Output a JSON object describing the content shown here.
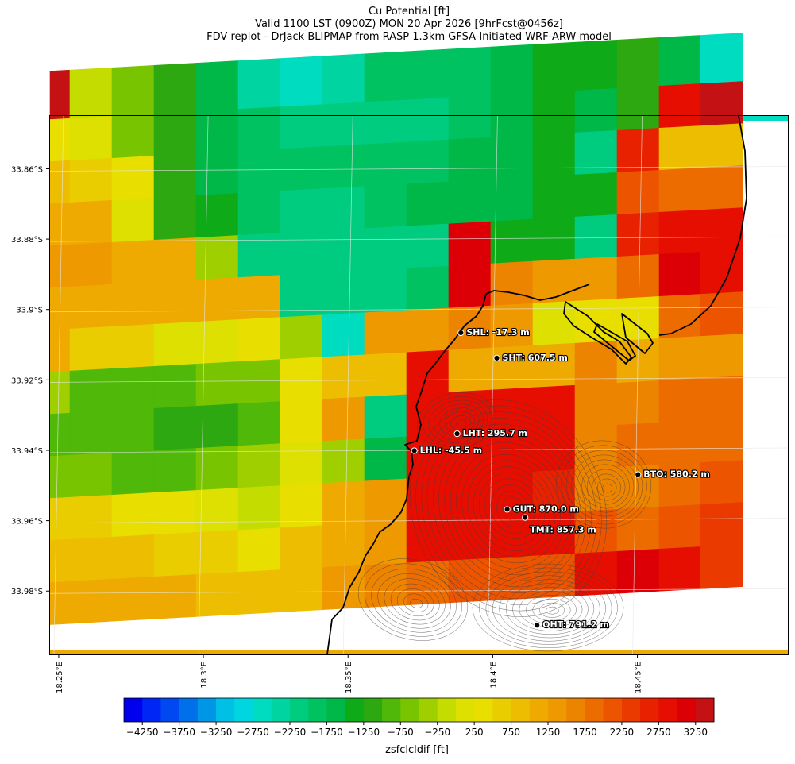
{
  "title": {
    "line1": "Cu Potential [ft]",
    "line2": "Valid 1100 LST (0900Z) MON 20 Apr 2026 [9hrFcst@0456z]",
    "line3": "FDV replot - DrJack BLIPMAP from RASP 1.3km GFSA-Initiated WRF-ARW model"
  },
  "axes": {
    "lat_ticks": [
      "33.86°S",
      "33.88°S",
      "33.9°S",
      "33.92°S",
      "33.94°S",
      "33.96°S",
      "33.98°S"
    ],
    "lon_ticks": [
      "18.25°E",
      "18.3°E",
      "18.35°E",
      "18.4°E",
      "18.45°E"
    ]
  },
  "colorbar": {
    "label": "zsfclcldif [ft]",
    "tick_labels": [
      "−4250",
      "−3750",
      "−3250",
      "−2750",
      "−2250",
      "−1750",
      "−1250",
      "−750",
      "−250",
      "250",
      "750",
      "1250",
      "1750",
      "2250",
      "2750",
      "3250"
    ],
    "min": -4500,
    "max": 3500,
    "step": 250,
    "colors": [
      "#0000ee",
      "#0026f5",
      "#0049f0",
      "#0070ea",
      "#0096e6",
      "#00c0e6",
      "#00d6e0",
      "#00dcc0",
      "#00d4a0",
      "#00cc80",
      "#00c260",
      "#00b848",
      "#0eaa18",
      "#2ea810",
      "#4fb808",
      "#78c400",
      "#a0cf00",
      "#c4dc00",
      "#dde000",
      "#e8de00",
      "#eacd00",
      "#ecbd00",
      "#eeaa00",
      "#ee9900",
      "#ec8400",
      "#ec6c00",
      "#ec5400",
      "#ea3a00",
      "#e82200",
      "#e60e00",
      "#dc0006",
      "#c41214"
    ]
  },
  "chart_data": {
    "type": "heatmap",
    "variable": "zsfclcldif",
    "units": "ft",
    "lon_range": [
      18.247,
      18.502
    ],
    "lat_range": [
      -33.998,
      -33.845
    ],
    "grid_rows": [
      [
        3500,
        -250,
        -750,
        -1250,
        -1750,
        -2500,
        -2750,
        -2500,
        -2000,
        -2000,
        -2000,
        -1750,
        -1500,
        -1500,
        -1250,
        -1750,
        -2750
      ],
      [
        250,
        0,
        -750,
        -1250,
        -1750,
        -2000,
        -2250,
        -2250,
        -2250,
        -2250,
        -2000,
        -1750,
        -1500,
        -1750,
        -1250,
        2750,
        3250
      ],
      [
        750,
        500,
        250,
        -1250,
        -1750,
        -2000,
        -2000,
        -2000,
        -2000,
        -2000,
        -1750,
        -1750,
        -1500,
        -2250,
        2500,
        750,
        750
      ],
      [
        1000,
        1000,
        0,
        -1250,
        -1500,
        -2000,
        -2250,
        -2250,
        -2000,
        -1750,
        -1750,
        -1750,
        -1500,
        -1500,
        2000,
        1750,
        1750
      ],
      [
        1250,
        1250,
        1000,
        1000,
        -500,
        -2250,
        -2250,
        -2250,
        -2250,
        -2250,
        3000,
        -1500,
        -1500,
        -2250,
        2500,
        2750,
        2750
      ],
      [
        1000,
        1000,
        1000,
        1000,
        1000,
        1000,
        -2250,
        -2250,
        -2250,
        -2000,
        3000,
        1500,
        1250,
        1250,
        1750,
        3000,
        2750
      ],
      [
        1000,
        500,
        500,
        0,
        0,
        250,
        -500,
        -2750,
        1250,
        1250,
        1500,
        1250,
        0,
        250,
        250,
        1750,
        2000
      ],
      [
        -500,
        -1000,
        -1000,
        -1000,
        -750,
        -750,
        250,
        750,
        750,
        2750,
        1000,
        1000,
        1000,
        1500,
        1000,
        1250,
        1250
      ],
      [
        -1000,
        -1000,
        -1000,
        -1250,
        -1250,
        -1000,
        250,
        1250,
        -2250,
        2750,
        2750,
        2750,
        2750,
        1500,
        1500,
        1750,
        1750
      ],
      [
        -750,
        -750,
        -1000,
        -1000,
        -750,
        -500,
        0,
        -500,
        -1750,
        2750,
        2750,
        2750,
        2750,
        1500,
        1750,
        1750,
        1750
      ],
      [
        500,
        500,
        250,
        250,
        0,
        -250,
        250,
        1000,
        1250,
        2750,
        2750,
        2750,
        2500,
        1500,
        1500,
        1750,
        2000
      ],
      [
        750,
        750,
        750,
        500,
        500,
        250,
        750,
        1000,
        1250,
        2750,
        2750,
        2750,
        2750,
        2000,
        1750,
        2000,
        2250
      ],
      [
        1000,
        1000,
        1000,
        1000,
        750,
        750,
        750,
        1250,
        1500,
        1750,
        2000,
        2000,
        2000,
        2750,
        3000,
        2750,
        2250
      ]
    ],
    "stations": [
      {
        "label": "SHL: -17.3 m",
        "lon": 18.389,
        "lat": -33.9066
      },
      {
        "label": "SHT: 607.5 m",
        "lon": 18.4014,
        "lat": -33.9138
      },
      {
        "label": "LHT: 295.7 m",
        "lon": 18.3877,
        "lat": -33.9353
      },
      {
        "label": "LHL: -45.5 m",
        "lon": 18.3729,
        "lat": -33.9401
      },
      {
        "label": "BTO: 580.2 m",
        "lon": 18.4502,
        "lat": -33.9469
      },
      {
        "label": "GUT: 870.0 m",
        "lon": 18.405,
        "lat": -33.9568
      },
      {
        "label": "TMT: 857.3 m",
        "lon": 18.4112,
        "lat": -33.9591
      },
      {
        "label": "OHT: 791.2 m",
        "lon": 18.4153,
        "lat": -33.9897
      }
    ]
  },
  "colors": {
    "coastline": "#000000",
    "contour": "#404040",
    "gridline": "#e8e8e8"
  }
}
